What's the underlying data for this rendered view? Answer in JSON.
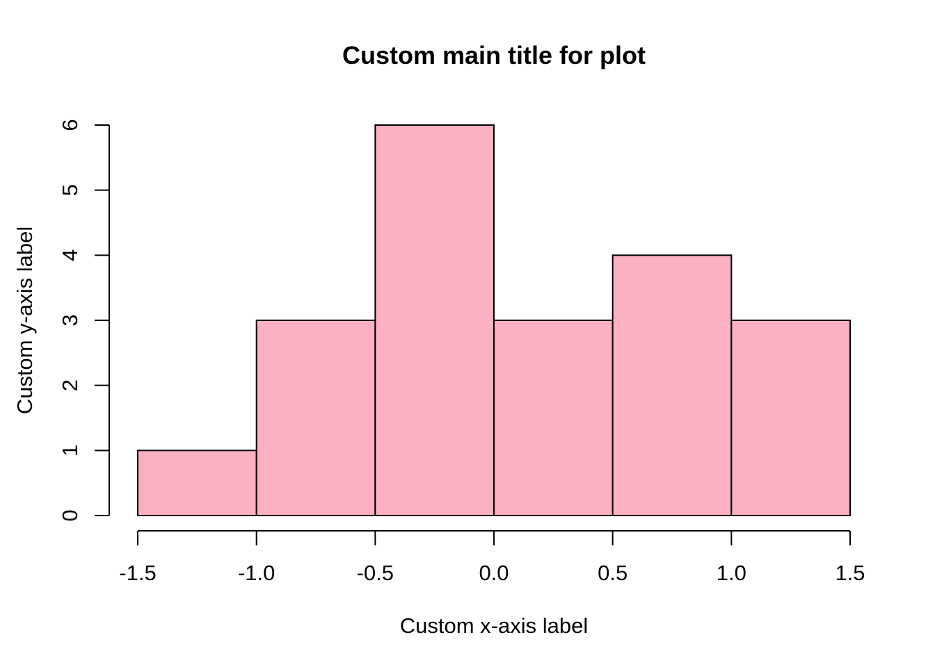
{
  "chart_data": {
    "type": "bar",
    "subtype": "histogram",
    "title": "Custom main title for plot",
    "xlabel": "Custom x-axis label",
    "ylabel": "Custom y-axis label",
    "bins": [
      {
        "start": -1.5,
        "end": -1.0,
        "count": 1
      },
      {
        "start": -1.0,
        "end": -0.5,
        "count": 3
      },
      {
        "start": -0.5,
        "end": 0.0,
        "count": 6
      },
      {
        "start": 0.0,
        "end": 0.5,
        "count": 3
      },
      {
        "start": 0.5,
        "end": 1.0,
        "count": 4
      },
      {
        "start": 1.0,
        "end": 1.5,
        "count": 3
      }
    ],
    "xlim": [
      -1.5,
      1.5
    ],
    "ylim": [
      0,
      6
    ],
    "x_ticks": [
      "-1.5",
      "-1.0",
      "-0.5",
      "0.0",
      "0.5",
      "1.0",
      "1.5"
    ],
    "y_ticks": [
      "0",
      "1",
      "2",
      "3",
      "4",
      "5",
      "6"
    ],
    "bar_color": "#FCB0C1",
    "edge_color": "#000000",
    "grid": false,
    "legend": "none"
  }
}
